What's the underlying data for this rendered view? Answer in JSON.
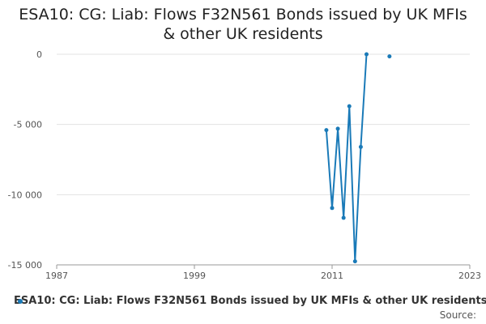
{
  "chart_data": {
    "type": "line",
    "title": "ESA10: CG: Liab: Flows F32N561 Bonds issued by UK MFIs & other UK residents",
    "xlabel": "",
    "ylabel": "",
    "x_ticks": [
      "1987",
      "1999",
      "2011",
      "2023"
    ],
    "xlim": [
      1987,
      2023
    ],
    "y_ticks": [
      0,
      -5000,
      -10000,
      -15000
    ],
    "y_tick_labels": [
      "0",
      "-5 000",
      "-10 000",
      "-15 000"
    ],
    "ylim": [
      -15000,
      0
    ],
    "grid": true,
    "legend_position": "bottom-left",
    "series": [
      {
        "name": "ESA10: CG: Liab: Flows F32N561 Bonds issued by UK MFIs & other UK residents",
        "color": "#1a7ab8",
        "segments": [
          [
            {
              "x": 2010.5,
              "y": -5400
            },
            {
              "x": 2011.0,
              "y": -10950
            },
            {
              "x": 2011.5,
              "y": -5300
            },
            {
              "x": 2012.0,
              "y": -11650
            },
            {
              "x": 2012.5,
              "y": -3700
            },
            {
              "x": 2013.0,
              "y": -14750
            },
            {
              "x": 2013.5,
              "y": -6600
            },
            {
              "x": 2014.0,
              "y": 0
            }
          ],
          [
            {
              "x": 2016.0,
              "y": -150
            }
          ]
        ]
      }
    ]
  },
  "legend_label": "ESA10: CG: Liab: Flows F32N561 Bonds issued by UK MFIs & other UK residents",
  "source_label": "Source:"
}
